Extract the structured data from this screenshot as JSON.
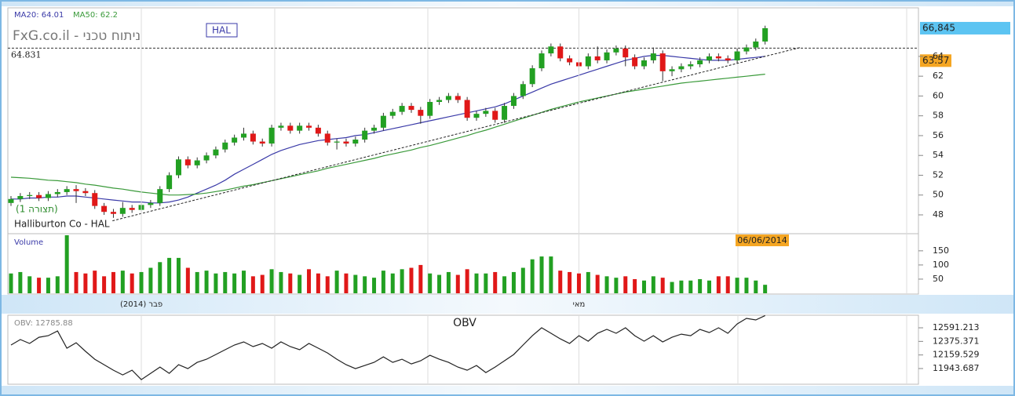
{
  "chart_data": [
    {
      "type": "candlestick",
      "title": "FxG.co.il - ניתוח טכני",
      "symbol": "HAL",
      "subtitle": "Halliburton Co - HAL",
      "annotation": "(תצורה 1)",
      "date_label": "06/06/2014",
      "categories": [
        null,
        null,
        null,
        null,
        null,
        null,
        null,
        null,
        null,
        null,
        null,
        null,
        null,
        null,
        "(2014) פבר",
        null,
        null,
        null,
        null,
        null,
        null,
        null,
        null,
        null,
        null,
        null,
        null,
        null,
        null,
        null,
        null,
        null,
        null,
        null,
        null,
        null,
        null,
        null,
        null,
        null,
        null,
        null,
        null,
        null,
        null,
        null,
        null,
        null,
        null,
        null,
        null,
        null,
        null,
        null,
        null,
        null,
        null,
        null,
        null,
        null,
        null,
        "מאי",
        null,
        null,
        null,
        null,
        null,
        null,
        null,
        null,
        null,
        null,
        null,
        null,
        null,
        null,
        null,
        null,
        null,
        null,
        null,
        null
      ],
      "open": [
        49.2,
        49.6,
        49.9,
        50.0,
        49.7,
        50.1,
        50.3,
        50.6,
        50.4,
        50.2,
        48.9,
        48.3,
        48.1,
        48.7,
        48.5,
        49.0,
        49.2,
        50.6,
        52.0,
        53.6,
        53.0,
        53.5,
        54.0,
        54.6,
        55.3,
        55.8,
        56.2,
        55.4,
        55.2,
        56.8,
        57.0,
        56.5,
        57.0,
        56.8,
        56.2,
        55.3,
        55.4,
        55.2,
        55.6,
        56.5,
        56.8,
        58.0,
        58.4,
        59.0,
        58.6,
        58.0,
        59.4,
        59.6,
        60.0,
        59.6,
        57.8,
        58.2,
        58.5,
        57.6,
        59.0,
        60.0,
        61.2,
        62.8,
        64.3,
        65.0,
        63.8,
        63.4,
        63.0,
        64.0,
        63.6,
        64.4,
        64.8,
        63.9,
        63.0,
        63.6,
        64.3,
        62.5,
        62.7,
        63.0,
        63.2,
        63.6,
        64.0,
        63.8,
        63.6,
        64.5,
        64.9,
        65.5
      ],
      "high": [
        49.9,
        50.2,
        50.3,
        50.3,
        50.4,
        50.6,
        50.9,
        51.0,
        50.7,
        50.5,
        49.2,
        48.6,
        49.3,
        49.0,
        49.3,
        49.5,
        50.9,
        52.3,
        53.9,
        53.9,
        53.8,
        54.3,
        54.9,
        55.6,
        56.1,
        56.8,
        56.5,
        55.7,
        57.1,
        57.3,
        57.3,
        57.3,
        57.3,
        57.1,
        56.5,
        55.7,
        55.7,
        55.9,
        56.8,
        57.1,
        58.3,
        58.7,
        59.3,
        59.3,
        58.9,
        59.7,
        59.9,
        60.3,
        60.3,
        59.9,
        58.5,
        58.8,
        58.8,
        59.3,
        60.3,
        61.5,
        63.1,
        64.6,
        65.3,
        65.3,
        64.1,
        63.7,
        64.3,
        65.0,
        64.7,
        65.1,
        65.1,
        64.2,
        63.9,
        64.9,
        64.6,
        63.0,
        63.3,
        63.5,
        63.9,
        64.3,
        64.3,
        64.1,
        64.8,
        65.2,
        65.8,
        67.1
      ],
      "low": [
        48.9,
        49.3,
        49.6,
        49.4,
        49.4,
        49.8,
        50.0,
        49.2,
        49.9,
        48.6,
        48.0,
        47.7,
        47.8,
        48.2,
        48.2,
        48.7,
        48.9,
        50.3,
        51.7,
        52.7,
        52.7,
        53.2,
        53.7,
        54.3,
        55.0,
        55.5,
        55.1,
        54.9,
        54.9,
        56.5,
        56.2,
        56.2,
        56.5,
        55.9,
        55.0,
        54.6,
        54.9,
        54.9,
        55.3,
        56.2,
        56.5,
        57.7,
        58.1,
        58.3,
        57.2,
        57.7,
        59.1,
        59.3,
        59.3,
        57.5,
        57.5,
        57.9,
        57.3,
        57.3,
        58.7,
        59.7,
        60.9,
        62.5,
        64.0,
        63.5,
        63.1,
        62.5,
        62.7,
        63.3,
        63.3,
        64.1,
        63.0,
        62.7,
        62.7,
        63.3,
        61.5,
        62.0,
        62.4,
        62.7,
        62.9,
        63.3,
        63.5,
        63.3,
        63.3,
        64.2,
        64.6,
        65.2
      ],
      "close": [
        49.6,
        49.9,
        50.0,
        49.7,
        50.1,
        50.3,
        50.6,
        50.4,
        50.2,
        48.9,
        48.3,
        48.1,
        48.7,
        48.5,
        49.0,
        49.2,
        50.6,
        52.0,
        53.6,
        53.0,
        53.5,
        54.0,
        54.6,
        55.3,
        55.8,
        56.2,
        55.4,
        55.2,
        56.8,
        57.0,
        56.5,
        57.0,
        56.8,
        56.2,
        55.3,
        55.4,
        55.2,
        55.6,
        56.5,
        56.8,
        58.0,
        58.4,
        59.0,
        58.6,
        58.0,
        59.4,
        59.6,
        60.0,
        59.6,
        57.8,
        58.2,
        58.5,
        57.6,
        59.0,
        60.0,
        61.2,
        62.8,
        64.3,
        65.0,
        63.8,
        63.4,
        63.0,
        64.0,
        63.6,
        64.4,
        64.8,
        63.9,
        63.0,
        63.6,
        64.3,
        62.5,
        62.7,
        63.0,
        63.2,
        63.6,
        64.0,
        63.8,
        63.6,
        64.5,
        64.9,
        65.5,
        66.845
      ],
      "last_close_label": "66,845",
      "up_color": "#22a022",
      "down_color": "#e01818",
      "series": [
        {
          "name": "MA20: 64.01",
          "color": "#3a3aa8",
          "values": [
            49.6,
            49.6,
            49.7,
            49.7,
            49.8,
            49.8,
            49.9,
            49.9,
            49.8,
            49.7,
            49.6,
            49.5,
            49.4,
            49.3,
            49.3,
            49.2,
            49.2,
            49.3,
            49.5,
            49.8,
            50.2,
            50.6,
            51.0,
            51.5,
            52.1,
            52.6,
            53.1,
            53.6,
            54.1,
            54.5,
            54.8,
            55.1,
            55.3,
            55.5,
            55.6,
            55.7,
            55.8,
            56.0,
            56.1,
            56.3,
            56.5,
            56.7,
            56.9,
            57.1,
            57.3,
            57.5,
            57.7,
            57.9,
            58.1,
            58.3,
            58.5,
            58.7,
            58.9,
            59.2,
            59.6,
            60.0,
            60.4,
            60.8,
            61.2,
            61.5,
            61.8,
            62.1,
            62.4,
            62.7,
            63.0,
            63.3,
            63.6,
            63.8,
            64.0,
            64.1,
            64.1,
            64.0,
            63.9,
            63.8,
            63.7,
            63.6,
            63.6,
            63.6,
            63.7,
            63.8,
            63.9,
            64.01
          ]
        },
        {
          "name": "MA50: 62.2",
          "color": "#3a9a3a",
          "values": [
            51.8,
            51.75,
            51.7,
            51.6,
            51.5,
            51.45,
            51.35,
            51.25,
            51.1,
            51.0,
            50.85,
            50.7,
            50.6,
            50.45,
            50.3,
            50.2,
            50.1,
            50.0,
            50.0,
            50.05,
            50.1,
            50.2,
            50.35,
            50.5,
            50.7,
            50.9,
            51.05,
            51.25,
            51.45,
            51.65,
            51.85,
            52.05,
            52.25,
            52.45,
            52.7,
            52.9,
            53.1,
            53.3,
            53.5,
            53.7,
            53.95,
            54.15,
            54.35,
            54.55,
            54.8,
            55.0,
            55.25,
            55.5,
            55.75,
            56.0,
            56.3,
            56.55,
            56.85,
            57.15,
            57.45,
            57.75,
            58.05,
            58.35,
            58.65,
            58.9,
            59.15,
            59.4,
            59.6,
            59.8,
            60.0,
            60.2,
            60.4,
            60.55,
            60.7,
            60.85,
            61.0,
            61.15,
            61.3,
            61.4,
            61.5,
            61.6,
            61.7,
            61.8,
            61.9,
            62.0,
            62.1,
            62.2
          ]
        }
      ],
      "hline": 64.831,
      "marker": 63.57,
      "trendline": {
        "x": [
          10.9,
          84.8
        ],
        "y": [
          47.4,
          64.9
        ]
      },
      "ylim": [
        46.1,
        68.9
      ],
      "yticks": [
        48,
        50,
        52,
        54,
        56,
        58,
        60,
        62,
        64
      ]
    },
    {
      "type": "bar",
      "title": "Volume",
      "values": [
        70,
        75,
        60,
        55,
        55,
        60,
        205,
        75,
        70,
        80,
        60,
        75,
        80,
        70,
        75,
        90,
        110,
        125,
        125,
        90,
        75,
        80,
        70,
        75,
        70,
        80,
        60,
        65,
        85,
        75,
        70,
        65,
        85,
        70,
        60,
        80,
        70,
        65,
        60,
        55,
        80,
        70,
        85,
        90,
        100,
        70,
        65,
        75,
        65,
        85,
        70,
        70,
        75,
        60,
        75,
        90,
        120,
        130,
        130,
        80,
        75,
        70,
        75,
        65,
        60,
        55,
        60,
        50,
        45,
        60,
        55,
        40,
        45,
        45,
        50,
        45,
        60,
        60,
        55,
        55,
        45,
        30
      ],
      "ylim": [
        0,
        205
      ],
      "yticks": [
        50,
        100,
        150
      ]
    },
    {
      "type": "line",
      "title": "OBV",
      "series": [
        {
          "name": "OBV: 12785.88",
          "color": "#222222",
          "values": [
            12317,
            12404,
            12342,
            12441,
            12466,
            12541,
            12267,
            12354,
            12217,
            12092,
            12005,
            11917,
            11842,
            11917,
            11767,
            11867,
            11967,
            11867,
            12005,
            11942,
            12042,
            12092,
            12167,
            12242,
            12317,
            12367,
            12292,
            12342,
            12267,
            12367,
            12292,
            12242,
            12342,
            12267,
            12192,
            12092,
            12005,
            11942,
            11992,
            12042,
            12129,
            12042,
            12092,
            12017,
            12067,
            12154,
            12092,
            12042,
            11967,
            11917,
            11992,
            11880,
            11967,
            12067,
            12167,
            12317,
            12466,
            12591,
            12504,
            12416,
            12342,
            12466,
            12379,
            12504,
            12566,
            12504,
            12591,
            12466,
            12379,
            12466,
            12367,
            12441,
            12491,
            12466,
            12566,
            12516,
            12591,
            12504,
            12653,
            12741,
            12716,
            12785.88
          ]
        }
      ],
      "ylim": [
        11694,
        12791
      ],
      "yticks": [
        11943.687,
        12159.529,
        12375.371,
        12591.213
      ]
    }
  ]
}
